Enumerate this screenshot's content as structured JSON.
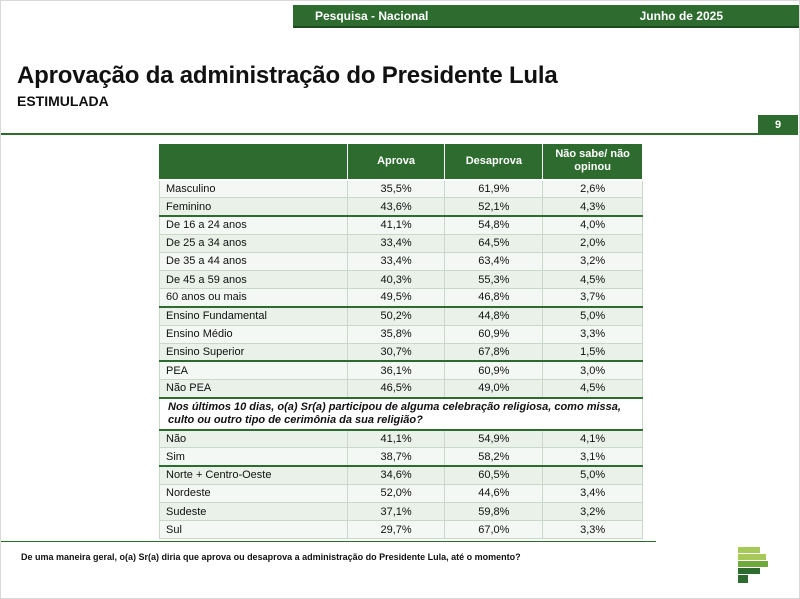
{
  "header": {
    "left_label": "Pesquisa - Nacional",
    "right_label": "Junho de 2025"
  },
  "title": "Aprovação da administração do Presidente Lula",
  "subtitle": "ESTIMULADA",
  "page_number": "9",
  "table": {
    "columns": [
      "",
      "Aprova",
      "Desaprova",
      "Não sabe/ não opinou"
    ],
    "rows": [
      {
        "label": "Masculino",
        "aprova": "35,5%",
        "desaprova": "61,9%",
        "ns": "2,6%",
        "group_start": true
      },
      {
        "label": "Feminino",
        "aprova": "43,6%",
        "desaprova": "52,1%",
        "ns": "4,3%"
      },
      {
        "label": "De 16 a 24 anos",
        "aprova": "41,1%",
        "desaprova": "54,8%",
        "ns": "4,0%",
        "group_start": true
      },
      {
        "label": "De 25 a 34 anos",
        "aprova": "33,4%",
        "desaprova": "64,5%",
        "ns": "2,0%"
      },
      {
        "label": "De 35 a 44 anos",
        "aprova": "33,4%",
        "desaprova": "63,4%",
        "ns": "3,2%"
      },
      {
        "label": "De 45 a 59 anos",
        "aprova": "40,3%",
        "desaprova": "55,3%",
        "ns": "4,5%"
      },
      {
        "label": "60 anos ou mais",
        "aprova": "49,5%",
        "desaprova": "46,8%",
        "ns": "3,7%"
      },
      {
        "label": "Ensino Fundamental",
        "aprova": "50,2%",
        "desaprova": "44,8%",
        "ns": "5,0%",
        "group_start": true
      },
      {
        "label": "Ensino Médio",
        "aprova": "35,8%",
        "desaprova": "60,9%",
        "ns": "3,3%"
      },
      {
        "label": "Ensino Superior",
        "aprova": "30,7%",
        "desaprova": "67,8%",
        "ns": "1,5%"
      },
      {
        "label": "PEA",
        "aprova": "36,1%",
        "desaprova": "60,9%",
        "ns": "3,0%",
        "group_start": true
      },
      {
        "label": "Não PEA",
        "aprova": "46,5%",
        "desaprova": "49,0%",
        "ns": "4,5%"
      },
      {
        "question": "Nos últimos 10 dias, o(a) Sr(a) participou de alguma celebração religiosa, como missa, culto ou outro tipo de cerimônia da sua religião?"
      },
      {
        "label": "Não",
        "aprova": "41,1%",
        "desaprova": "54,9%",
        "ns": "4,1%",
        "group_start": true
      },
      {
        "label": "Sim",
        "aprova": "38,7%",
        "desaprova": "58,2%",
        "ns": "3,1%"
      },
      {
        "label": "Norte + Centro-Oeste",
        "aprova": "34,6%",
        "desaprova": "60,5%",
        "ns": "5,0%",
        "group_start": true
      },
      {
        "label": "Nordeste",
        "aprova": "52,0%",
        "desaprova": "44,6%",
        "ns": "3,4%"
      },
      {
        "label": "Sudeste",
        "aprova": "37,1%",
        "desaprova": "59,8%",
        "ns": "3,2%"
      },
      {
        "label": "Sul",
        "aprova": "29,7%",
        "desaprova": "67,0%",
        "ns": "3,3%"
      }
    ]
  },
  "footnote": "De uma maneira geral, o(a) Sr(a) diria que aprova ou desaprova a administração do Presidente Lula, até o momento?",
  "colors": {
    "brand_green": "#2e6b2f",
    "logo_light_green": "#a7c95a"
  }
}
